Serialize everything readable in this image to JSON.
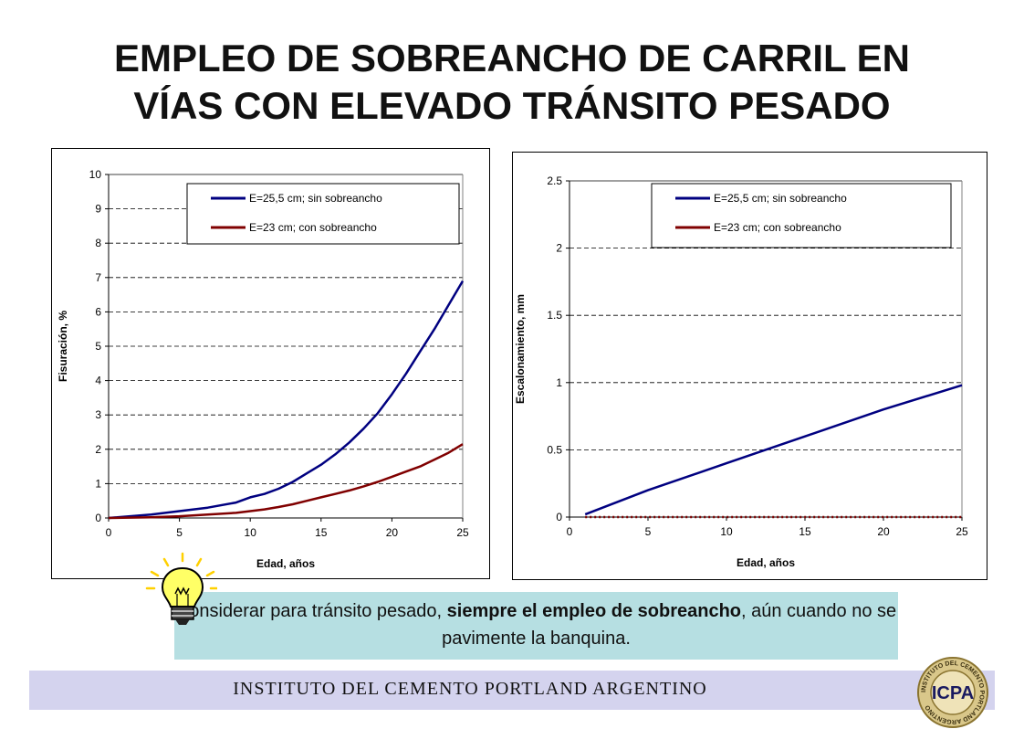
{
  "page": {
    "title_line1": "EMPLEO DE SOBREANCHO DE CARRIL EN",
    "title_line2": "VÍAS CON ELEVADO TRÁNSITO PESADO",
    "tip": {
      "part1": "Considerar para tránsito pesado, ",
      "bold1": "siempre el empleo de sobreancho",
      "part2": ", aún cuando no se pavimente la banquina."
    },
    "footer": "INSTITUTO DEL CEMENTO PORTLAND ARGENTINO",
    "logo": {
      "text": "ICPA",
      "ring_text": "INSTITUTO DEL CEMENTO PORTLAND ARGENTINO"
    },
    "icon": "lightbulb-icon",
    "colors": {
      "series_blue": "#000080",
      "series_red": "#800000",
      "tip_bg": "#b6dfe2",
      "footer_bg": "#d4d3ee"
    }
  },
  "chart_data": [
    {
      "type": "line",
      "xlabel": "Edad, años",
      "ylabel": "Fisuración, %",
      "xlim": [
        0,
        25
      ],
      "ylim": [
        0,
        10
      ],
      "xticks": [
        0,
        5,
        10,
        15,
        20,
        25
      ],
      "yticks": [
        0,
        1,
        2,
        3,
        4,
        5,
        6,
        7,
        8,
        9,
        10
      ],
      "grid": "dashed horizontal",
      "legend": "top-right",
      "series": [
        {
          "name": "E=25,5 cm; sin sobreancho",
          "color": "#000080",
          "x": [
            0,
            3,
            5,
            7,
            9,
            10,
            11,
            12,
            13,
            14,
            15,
            16,
            17,
            18,
            19,
            20,
            21,
            22,
            23,
            24,
            25
          ],
          "y": [
            0,
            0.1,
            0.2,
            0.3,
            0.45,
            0.6,
            0.7,
            0.85,
            1.05,
            1.3,
            1.55,
            1.85,
            2.2,
            2.6,
            3.05,
            3.6,
            4.2,
            4.85,
            5.5,
            6.2,
            6.9
          ]
        },
        {
          "name": "E=23 cm; con sobreancho",
          "color": "#800000",
          "x": [
            0,
            3,
            5,
            7,
            9,
            10,
            11,
            12,
            13,
            14,
            15,
            16,
            17,
            18,
            19,
            20,
            21,
            22,
            23,
            24,
            25
          ],
          "y": [
            0,
            0.02,
            0.05,
            0.1,
            0.15,
            0.2,
            0.25,
            0.32,
            0.4,
            0.5,
            0.6,
            0.7,
            0.8,
            0.92,
            1.05,
            1.2,
            1.35,
            1.5,
            1.7,
            1.9,
            2.15
          ]
        }
      ]
    },
    {
      "type": "line",
      "xlabel": "Edad, años",
      "ylabel": "Escalonamiento, mm",
      "xlim": [
        0,
        25
      ],
      "ylim": [
        0,
        2.5
      ],
      "xticks": [
        0,
        5,
        10,
        15,
        20,
        25
      ],
      "yticks": [
        0,
        0.5,
        1,
        1.5,
        2,
        2.5
      ],
      "grid": "dashed horizontal",
      "legend": "top-right",
      "series": [
        {
          "name": "E=25,5 cm; sin sobreancho",
          "color": "#000080",
          "x": [
            1,
            5,
            10,
            15,
            20,
            25
          ],
          "y": [
            0.02,
            0.2,
            0.4,
            0.6,
            0.8,
            0.98
          ]
        },
        {
          "name": "E=23 cm; con sobreancho",
          "color": "#800000",
          "x": [
            1,
            5,
            10,
            15,
            20,
            25
          ],
          "y": [
            0,
            0,
            0,
            0,
            0,
            0
          ]
        }
      ]
    }
  ]
}
